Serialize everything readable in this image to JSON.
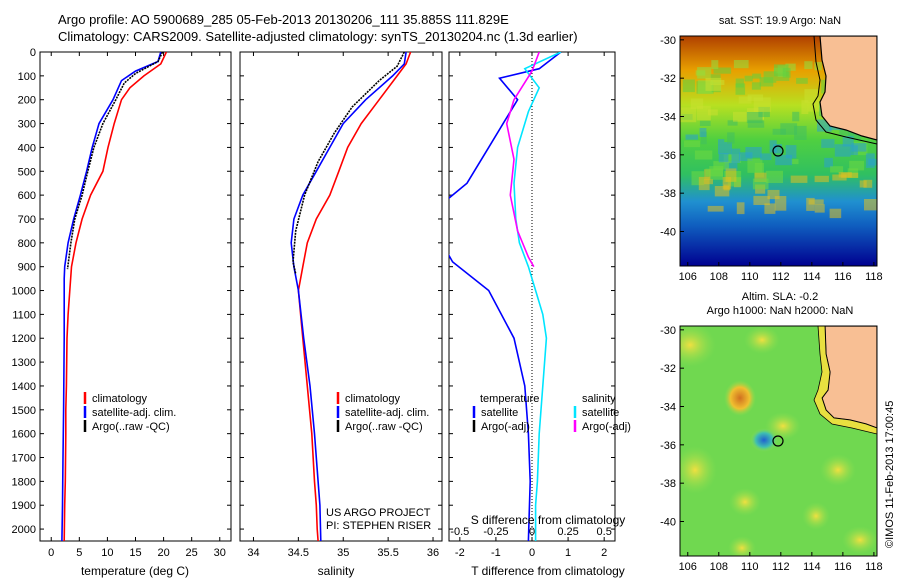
{
  "header": {
    "line1": "Argo profile: AO 5900689_285 05-Feb-2013 20130206_111 35.885S 111.829E",
    "line2": "Climatology: CARS2009. Satellite-adjusted climatology: synTS_20130204.nc (1.3d earlier)"
  },
  "colors": {
    "climatology": "#ff0000",
    "satellite": "#0000ff",
    "argo": "#000000",
    "sat_salinity": "#00e5ff",
    "argo_salinity": "#ff00ff"
  },
  "chart_data": [
    {
      "type": "line",
      "xlabel": "temperature (deg C)",
      "x_ticks": [
        "0",
        "5",
        "10",
        "15",
        "20",
        "25",
        "30"
      ],
      "y_ticks": [
        "0",
        "100",
        "200",
        "300",
        "400",
        "500",
        "600",
        "700",
        "800",
        "900",
        "1000",
        "1100",
        "1200",
        "1300",
        "1400",
        "1500",
        "1600",
        "1700",
        "1800",
        "1900",
        "2000"
      ],
      "xlim": [
        -2,
        32
      ],
      "ylim": [
        2050,
        0
      ],
      "legend": [
        "climatology",
        "satellite-adj. clim.",
        "Argo(..raw -QC)"
      ],
      "series": [
        {
          "name": "climatology",
          "color": "#ff0000",
          "x": [
            20.5,
            19.5,
            16.5,
            14,
            12.5,
            11.2,
            10.1,
            9.2,
            7,
            5.5,
            4.4,
            3.6,
            3.3,
            3,
            2.8,
            2.7,
            2.6,
            2.6,
            2.5,
            2.4,
            2.3
          ],
          "y": [
            0,
            50,
            100,
            150,
            200,
            300,
            400,
            500,
            600,
            700,
            800,
            900,
            1000,
            1100,
            1200,
            1400,
            1500,
            1600,
            1800,
            1900,
            2050
          ]
        },
        {
          "name": "satellite-adj. clim.",
          "color": "#0000ff",
          "x": [
            19.5,
            19,
            15,
            12.5,
            11,
            8.5,
            7.3,
            6.3,
            5.2,
            4,
            3,
            2.4,
            2.3,
            2.3,
            2.3,
            2.2,
            2.1,
            2.0,
            1.9
          ],
          "y": [
            0,
            40,
            80,
            120,
            200,
            300,
            400,
            500,
            600,
            700,
            800,
            900,
            950,
            1000,
            1200,
            1500,
            1700,
            1900,
            2050
          ]
        },
        {
          "name": "Argo(..raw -QC)",
          "color": "#000000",
          "x": [
            19.8,
            19,
            15,
            13,
            11.5,
            9.2,
            7.6,
            6.5,
            5.5,
            4.2,
            3.5,
            2.9
          ],
          "y": [
            0,
            40,
            90,
            130,
            200,
            300,
            400,
            500,
            600,
            700,
            800,
            910
          ]
        }
      ]
    },
    {
      "type": "line",
      "xlabel": "salinity",
      "x_ticks": [
        "34",
        "34.5",
        "35",
        "35.5",
        "36"
      ],
      "xlim": [
        33.85,
        36.1
      ],
      "ylim": [
        2050,
        0
      ],
      "legend": [
        "climatology",
        "satellite-adj. clim.",
        "Argo(..raw -QC)"
      ],
      "annotations": [
        "US ARGO PROJECT",
        "PI: STEPHEN RISER"
      ],
      "series": [
        {
          "name": "climatology",
          "color": "#ff0000",
          "x": [
            35.75,
            35.7,
            35.6,
            35.4,
            35.2,
            35.05,
            34.95,
            34.85,
            34.7,
            34.6,
            34.55,
            34.5,
            34.55,
            34.6,
            34.65,
            34.68,
            34.7,
            34.71,
            34.72
          ],
          "y": [
            0,
            50,
            100,
            200,
            300,
            400,
            500,
            600,
            700,
            800,
            900,
            1000,
            1200,
            1400,
            1600,
            1800,
            1900,
            2000,
            2050
          ]
        },
        {
          "name": "satellite-adj. clim.",
          "color": "#0000ff",
          "x": [
            35.7,
            35.68,
            35.55,
            35.25,
            35.0,
            34.85,
            34.7,
            34.55,
            34.45,
            34.42,
            34.45,
            34.5,
            34.56,
            34.63,
            34.68,
            34.72,
            34.74,
            34.75
          ],
          "y": [
            0,
            50,
            100,
            200,
            300,
            400,
            500,
            600,
            700,
            800,
            900,
            1000,
            1200,
            1400,
            1600,
            1800,
            1900,
            2050
          ]
        },
        {
          "name": "Argo(..raw -QC)",
          "color": "#000000",
          "x": [
            35.68,
            35.6,
            35.4,
            35.1,
            34.9,
            34.72,
            34.57,
            34.47,
            34.44,
            34.47
          ],
          "y": [
            0,
            60,
            120,
            230,
            340,
            460,
            600,
            750,
            880,
            930
          ]
        }
      ]
    },
    {
      "type": "line",
      "xlabel": "T difference from climatology",
      "x_ticks": [
        "-2",
        "-1",
        "0",
        "1",
        "2"
      ],
      "top_label": "S difference from climatology",
      "s_ticks": [
        "-0.5",
        "-0.25",
        "0",
        "0.25",
        "0.5"
      ],
      "xlim": [
        -2.3,
        2.3
      ],
      "ylim": [
        2050,
        0
      ],
      "legend_temperature": {
        "title": "temperature",
        "items": [
          "satellite",
          "Argo(-adj)"
        ]
      },
      "legend_salinity": {
        "title": "salinity",
        "items": [
          "satellite",
          "Argo(-adj)"
        ]
      },
      "series": [
        {
          "name": "satellite",
          "color": "#0000ff",
          "x": [
            0.8,
            0.2,
            -0.9,
            -0.4,
            -0.8,
            -1.2,
            -1.8,
            -3,
            -2.5,
            -2.2,
            -1.2,
            -0.5,
            -0.2,
            -0.1,
            -0.05,
            -0.08,
            -0.1
          ],
          "y": [
            0,
            70,
            110,
            200,
            300,
            400,
            550,
            700,
            800,
            880,
            1000,
            1200,
            1400,
            1600,
            1800,
            1950,
            2050
          ]
        },
        {
          "name": "satellite salinity",
          "color": "#00e5ff",
          "x": [
            0.8,
            -0.2,
            0.2,
            -0.1,
            -0.4,
            -0.5,
            -0.45,
            -0.35,
            -0.1,
            0.1,
            0.3,
            0.4,
            0.3,
            0.2,
            0.15,
            0.1,
            0.1,
            0.1
          ],
          "y": [
            0,
            70,
            150,
            250,
            400,
            550,
            700,
            800,
            900,
            1000,
            1100,
            1200,
            1400,
            1600,
            1800,
            1900,
            2000,
            2050
          ]
        },
        {
          "name": "Argo(-adj)",
          "color": "#ff00ff",
          "x": [
            0.2,
            0,
            -0.5,
            -0.7,
            -0.5,
            -0.6,
            -0.4,
            -0.1,
            0.05
          ],
          "y": [
            0,
            80,
            200,
            300,
            450,
            600,
            750,
            860,
            900
          ]
        }
      ]
    },
    {
      "type": "heatmap",
      "title": "sat. SST: 19.9  Argo: NaN",
      "x_ticks": [
        "106",
        "108",
        "110",
        "112",
        "114",
        "116",
        "118"
      ],
      "y_ticks": [
        "-30",
        "-32",
        "-34",
        "-36",
        "-38",
        "-40"
      ],
      "xlim": [
        105.5,
        118.2
      ],
      "ylim": [
        -41.8,
        -29.8
      ],
      "argo_position": {
        "lon": 111.829,
        "lat": -35.885
      }
    },
    {
      "type": "heatmap",
      "title": "Altim. SLA: -0.2",
      "subtitle": "Argo h1000: NaN  h2000: NaN",
      "x_ticks": [
        "106",
        "108",
        "110",
        "112",
        "114",
        "116",
        "118"
      ],
      "y_ticks": [
        "-30",
        "-32",
        "-34",
        "-36",
        "-38",
        "-40"
      ],
      "xlim": [
        105.5,
        118.2
      ],
      "ylim": [
        -41.8,
        -29.8
      ],
      "argo_position": {
        "lon": 111.829,
        "lat": -35.885
      }
    }
  ],
  "watermark": "©IMOS 11-Feb-2013 17:00:45"
}
